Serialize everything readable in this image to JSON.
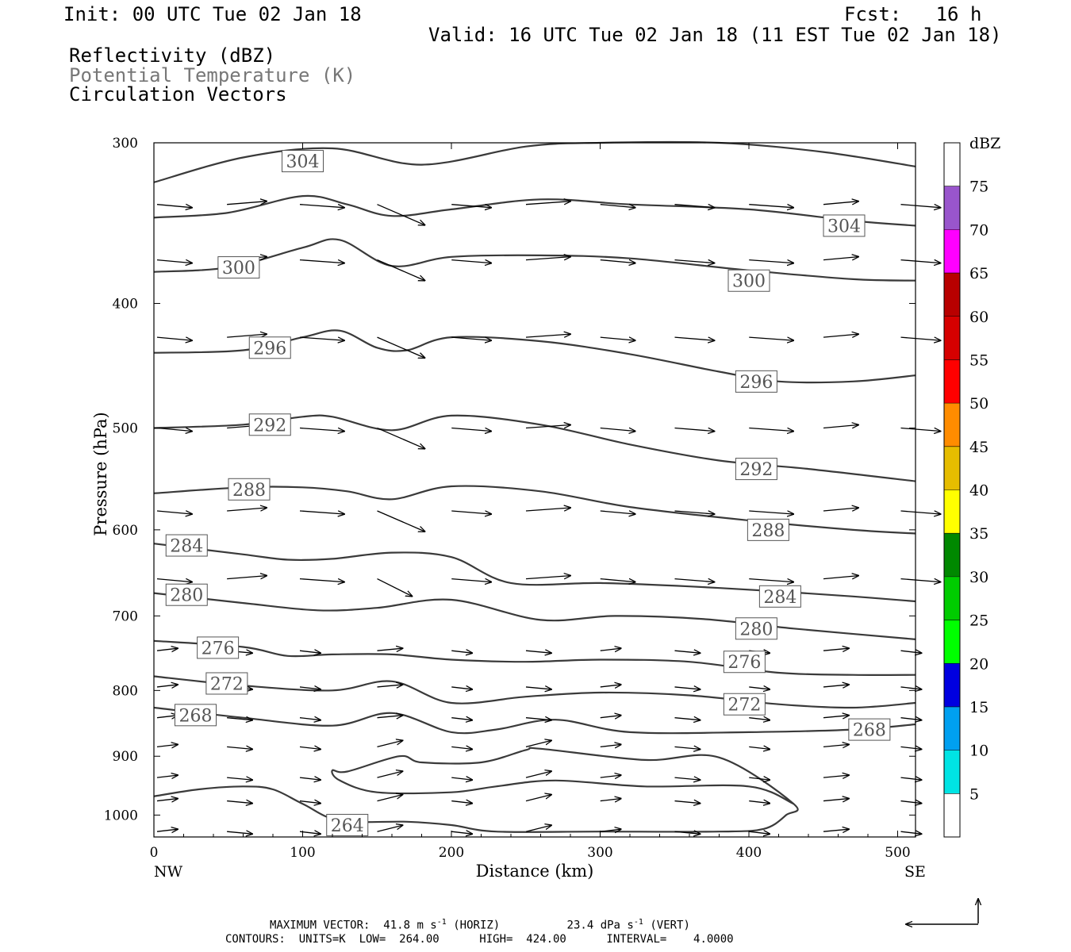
{
  "header": {
    "init": "Init: 00 UTC Tue 02 Jan 18",
    "fcst": "Fcst:   16 h",
    "valid": "Valid: 16 UTC Tue 02 Jan 18 (11 EST Tue 02 Jan 18)",
    "fields": [
      "Reflectivity (dBZ)",
      "Potential Temperature (K)",
      "Circulation Vectors"
    ]
  },
  "footer": {
    "max_vector": {
      "label": "MAXIMUM VECTOR:",
      "horiz_value": "41.8",
      "horiz_unit": "m s",
      "horiz_exp": "-1",
      "horiz_tag": "(HORIZ)",
      "vert_value": "23.4",
      "vert_unit": "dPa s",
      "vert_exp": "-1",
      "vert_tag": "(VERT)"
    },
    "contours": "CONTOURS:  UNITS=K  LOW=  264.00      HIGH=  424.00      INTERVAL=    4.0000"
  },
  "colors": {
    "contour": "#3a3a3a",
    "vector": "#000000",
    "frame": "#000000"
  },
  "chart_data": {
    "type": "line",
    "title": "",
    "xlabel": "Distance (km)",
    "ylabel": "Pressure (hPa)",
    "xlim": [
      0,
      512
    ],
    "ylim": [
      1040,
      300
    ],
    "y_scale": "log-pressure (inverted)",
    "x_ticks": [
      0,
      100,
      200,
      300,
      400,
      500
    ],
    "y_ticks": [
      300,
      400,
      500,
      600,
      700,
      800,
      900,
      1000
    ],
    "x_end_labels": {
      "left": "NW",
      "right": "SE"
    },
    "grid": false,
    "series": [
      {
        "name": "304",
        "x": [
          0,
          60,
          120,
          180,
          250,
          300,
          380,
          450,
          512
        ],
        "y": [
          322,
          308,
          303,
          312,
          302,
          300,
          300,
          305,
          313
        ]
      },
      {
        "name": "",
        "x": [
          0,
          50,
          100,
          130,
          160,
          200,
          260,
          320,
          400,
          470,
          512
        ],
        "y": [
          343,
          340,
          330,
          335,
          342,
          338,
          332,
          335,
          338,
          345,
          348
        ]
      },
      {
        "name": "300",
        "x": [
          0,
          50,
          100,
          125,
          160,
          200,
          260,
          320,
          400,
          470,
          512
        ],
        "y": [
          378,
          375,
          362,
          357,
          374,
          368,
          367,
          369,
          377,
          383,
          384
        ]
      },
      {
        "name": "296",
        "x": [
          0,
          60,
          100,
          125,
          150,
          170,
          200,
          260,
          320,
          380,
          420,
          470,
          512
        ],
        "y": [
          437,
          435,
          425,
          420,
          433,
          435,
          425,
          428,
          438,
          452,
          460,
          460,
          455
        ]
      },
      {
        "name": "292",
        "x": [
          0,
          60,
          100,
          120,
          160,
          200,
          260,
          320,
          380,
          440,
          512
        ],
        "y": [
          500,
          497,
          490,
          490,
          502,
          489,
          497,
          515,
          530,
          538,
          550
        ]
      },
      {
        "name": "288",
        "x": [
          0,
          60,
          100,
          130,
          160,
          200,
          260,
          320,
          400,
          470,
          512
        ],
        "y": [
          562,
          556,
          556,
          560,
          568,
          555,
          560,
          576,
          590,
          600,
          604
        ]
      },
      {
        "name": "284",
        "x": [
          0,
          60,
          90,
          120,
          160,
          200,
          240,
          300,
          360,
          420,
          470,
          512
        ],
        "y": [
          615,
          627,
          633,
          632,
          625,
          630,
          660,
          660,
          664,
          670,
          676,
          682
        ]
      },
      {
        "name": "280",
        "x": [
          0,
          60,
          110,
          150,
          200,
          260,
          310,
          370,
          430,
          512
        ],
        "y": [
          672,
          684,
          693,
          690,
          680,
          705,
          700,
          704,
          716,
          730
        ]
      },
      {
        "name": "276",
        "x": [
          0,
          60,
          90,
          120,
          160,
          200,
          250,
          300,
          360,
          420,
          470,
          512
        ],
        "y": [
          732,
          740,
          752,
          750,
          750,
          757,
          760,
          757,
          760,
          775,
          778,
          778
        ]
      },
      {
        "name": "272",
        "x": [
          0,
          60,
          120,
          160,
          200,
          250,
          300,
          360,
          420,
          470,
          512
        ],
        "y": [
          780,
          793,
          800,
          787,
          818,
          809,
          803,
          807,
          820,
          825,
          818
        ]
      },
      {
        "name": "268",
        "x": [
          0,
          60,
          120,
          160,
          200,
          230,
          270,
          320,
          400,
          470,
          512
        ],
        "y": [
          825,
          840,
          852,
          833,
          862,
          858,
          843,
          862,
          862,
          858,
          850
        ]
      },
      {
        "name": "264",
        "x": [
          0,
          30,
          60,
          80,
          100,
          125,
          170,
          200,
          230,
          300,
          380,
          410,
          425,
          430,
          380,
          330,
          260,
          250,
          220,
          180,
          165,
          130,
          120,
          125,
          150,
          200,
          230,
          270,
          330,
          400,
          430
        ],
        "y": [
          967,
          955,
          950,
          955,
          980,
          1010,
          1012,
          1018,
          1030,
          1030,
          1030,
          1025,
          1000,
          980,
          902,
          906,
          888,
          890,
          910,
          910,
          900,
          925,
          923,
          940,
          960,
          960,
          950,
          940,
          950,
          950,
          980
        ]
      }
    ],
    "vectors_note": "Circulation vectors shown as arrows",
    "colorbar": {
      "title": "dBZ",
      "labels": [
        "5",
        "10",
        "15",
        "20",
        "25",
        "30",
        "35",
        "40",
        "45",
        "50",
        "55",
        "60",
        "65",
        "70",
        "75"
      ],
      "colors": [
        "#ffffff",
        "#00e4e4",
        "#00a0f0",
        "#0000e0",
        "#00ff00",
        "#00cc00",
        "#008800",
        "#ffff00",
        "#e6bd00",
        "#ff8c00",
        "#ff0000",
        "#d60000",
        "#b80000",
        "#ff00ff",
        "#9955cc",
        "#ffffff"
      ]
    }
  }
}
